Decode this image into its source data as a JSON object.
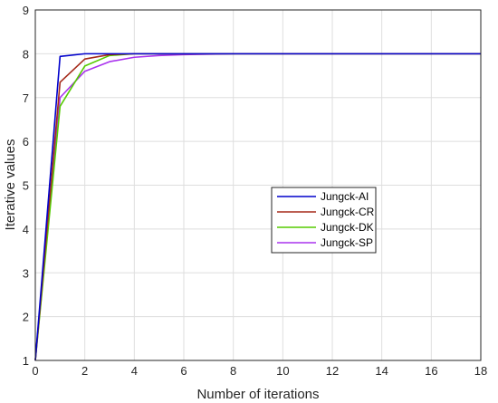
{
  "chart_data": {
    "type": "line",
    "title": "",
    "xlabel": "Number of iterations",
    "ylabel": "Iterative values",
    "xlim": [
      0,
      18
    ],
    "ylim": [
      1,
      9
    ],
    "xticks": [
      0,
      2,
      4,
      6,
      8,
      10,
      12,
      14,
      16,
      18
    ],
    "yticks": [
      1,
      2,
      3,
      4,
      5,
      6,
      7,
      8,
      9
    ],
    "grid": true,
    "legend": {
      "position": "right-center",
      "entries": [
        "Jungck-AI",
        "Jungck-CR",
        "Jungck-DK",
        "Jungck-SP"
      ]
    },
    "x": [
      0,
      1,
      2,
      3,
      4,
      5,
      6,
      7,
      8,
      9,
      10,
      11,
      12,
      13,
      14,
      15,
      16,
      17,
      18
    ],
    "series": [
      {
        "name": "Jungck-AI",
        "color": "#0000cc",
        "values": [
          1,
          7.94,
          8.0,
          8.0,
          8.0,
          8.0,
          8.0,
          8.0,
          8.0,
          8.0,
          8.0,
          8.0,
          8.0,
          8.0,
          8.0,
          8.0,
          8.0,
          8.0,
          8.0
        ]
      },
      {
        "name": "Jungck-CR",
        "color": "#a52a1a",
        "values": [
          1,
          7.35,
          7.88,
          7.98,
          8.0,
          8.0,
          8.0,
          8.0,
          8.0,
          8.0,
          8.0,
          8.0,
          8.0,
          8.0,
          8.0,
          8.0,
          8.0,
          8.0,
          8.0
        ]
      },
      {
        "name": "Jungck-DK",
        "color": "#55cc00",
        "values": [
          1,
          6.8,
          7.72,
          7.96,
          8.0,
          8.0,
          8.0,
          8.0,
          8.0,
          8.0,
          8.0,
          8.0,
          8.0,
          8.0,
          8.0,
          8.0,
          8.0,
          8.0,
          8.0
        ]
      },
      {
        "name": "Jungck-SP",
        "color": "#aa33ee",
        "values": [
          1,
          7.0,
          7.6,
          7.82,
          7.92,
          7.96,
          7.98,
          7.99,
          8.0,
          8.0,
          8.0,
          8.0,
          8.0,
          8.0,
          8.0,
          8.0,
          8.0,
          8.0,
          8.0
        ]
      }
    ]
  }
}
